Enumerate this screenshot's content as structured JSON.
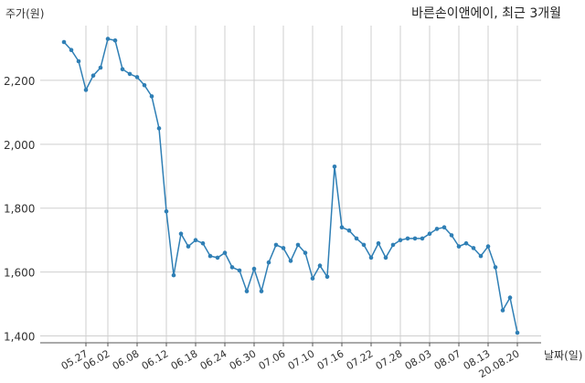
{
  "chart_data": {
    "type": "line",
    "title": "바른손이앤에이, 최근 3개월",
    "ylabel": "주가(원)",
    "xlabel": "날짜(일)",
    "ylim": [
      1380,
      2360
    ],
    "yticks": [
      1400,
      1600,
      1800,
      2000,
      2200
    ],
    "ytick_labels": [
      "1,400",
      "1,600",
      "1,800",
      "2,000",
      "2,200"
    ],
    "xtick_labels": [
      "05.27",
      "06.02",
      "06.08",
      "06.12",
      "06.18",
      "06.24",
      "06.30",
      "07.06",
      "07.10",
      "07.16",
      "07.22",
      "07.28",
      "08.03",
      "08.07",
      "08.13",
      "20.08.20"
    ],
    "grid": true,
    "color": "#2f7fb5",
    "series": [
      {
        "values": [
          2320,
          2295,
          2260,
          2170,
          2215,
          2240,
          2330,
          2325,
          2235,
          2220,
          2210,
          2185,
          2150,
          2050,
          1790,
          1590,
          1720,
          1680,
          1700,
          1690,
          1650,
          1645,
          1660,
          1615,
          1605,
          1540,
          1610,
          1540,
          1630,
          1685,
          1675,
          1635,
          1685,
          1660,
          1580,
          1620,
          1585,
          1930,
          1740,
          1730,
          1705,
          1685,
          1645,
          1690,
          1645,
          1685,
          1700,
          1705,
          1705,
          1705,
          1720,
          1735,
          1740,
          1715,
          1680,
          1690,
          1675,
          1650,
          1680,
          1615,
          1480,
          1520,
          1410
        ]
      }
    ]
  }
}
